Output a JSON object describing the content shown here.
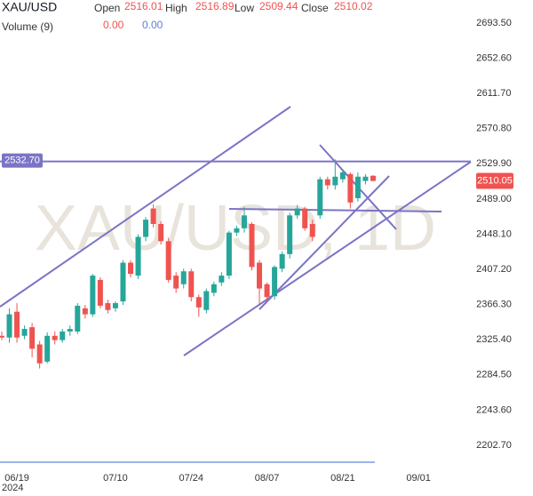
{
  "legend": {
    "symbol": "XAU/USD",
    "open_label": "Open",
    "open": "2516.01",
    "high_label": "High",
    "high": "2516.89",
    "low_label": "Low",
    "low": "2509.44",
    "close_label": "Close",
    "close": "2510.02",
    "volume_label": "Volume (9)",
    "volume_1": "0.00",
    "volume_2": "0.00"
  },
  "chart_data": {
    "type": "candlestick",
    "watermark": "XAU/USD, 1D",
    "year_label": "2024",
    "categories": [
      null,
      null,
      "06/19",
      null,
      null,
      null,
      null,
      null,
      null,
      null,
      null,
      null,
      null,
      null,
      null,
      "07/10",
      null,
      null,
      null,
      null,
      null,
      null,
      null,
      null,
      null,
      "07/24",
      null,
      null,
      null,
      null,
      null,
      null,
      null,
      null,
      null,
      "08/07",
      null,
      null,
      null,
      null,
      null,
      null,
      null,
      null,
      null,
      "08/21",
      null,
      null,
      null,
      null,
      null,
      null,
      null,
      null,
      null,
      "09/01"
    ],
    "open": [
      2330,
      2328,
      2358,
      2330,
      2340,
      2320,
      2300,
      2330,
      2325,
      2335,
      2335,
      2362,
      2355,
      2395,
      2368,
      2362,
      2370,
      2415,
      2400,
      2445,
      2478,
      2460,
      2440,
      2400,
      2390,
      2405,
      2375,
      2360,
      2380,
      2392,
      2400,
      2450,
      2455,
      2460,
      2415,
      2390,
      2376,
      2408,
      2425,
      2470,
      2478,
      2460,
      2470,
      2512,
      2505,
      2512,
      2518,
      2490,
      2510,
      2516.01,
      null,
      null,
      null,
      null,
      null,
      null
    ],
    "high": [
      2335,
      2362,
      2368,
      2342,
      2345,
      2324,
      2334,
      2335,
      2338,
      2342,
      2368,
      2366,
      2402,
      2398,
      2372,
      2370,
      2418,
      2418,
      2448,
      2468,
      2483,
      2463,
      2444,
      2404,
      2408,
      2408,
      2378,
      2385,
      2393,
      2404,
      2452,
      2458,
      2480,
      2462,
      2418,
      2392,
      2412,
      2428,
      2473,
      2482,
      2480,
      2465,
      2515,
      2515,
      2535,
      2522,
      2520,
      2520,
      2518,
      2516.89,
      null,
      null,
      null,
      null,
      null,
      null
    ],
    "low": [
      2325,
      2322,
      2322,
      2326,
      2305,
      2292,
      2298,
      2320,
      2322,
      2330,
      2332,
      2350,
      2352,
      2362,
      2356,
      2358,
      2366,
      2398,
      2396,
      2440,
      2456,
      2436,
      2392,
      2380,
      2385,
      2370,
      2352,
      2356,
      2376,
      2388,
      2396,
      2446,
      2450,
      2406,
      2365,
      2370,
      2372,
      2404,
      2420,
      2466,
      2452,
      2440,
      2466,
      2500,
      2500,
      2508,
      2478,
      2486,
      2506,
      2509.44,
      null,
      null,
      null,
      null,
      null,
      null
    ],
    "close": [
      2328,
      2355,
      2328,
      2338,
      2315,
      2298,
      2330,
      2325,
      2335,
      2338,
      2365,
      2355,
      2400,
      2365,
      2360,
      2368,
      2415,
      2402,
      2445,
      2465,
      2460,
      2440,
      2395,
      2385,
      2405,
      2375,
      2363,
      2382,
      2390,
      2400,
      2450,
      2455,
      2470,
      2410,
      2385,
      2375,
      2410,
      2425,
      2470,
      2478,
      2455,
      2445,
      2512,
      2505,
      2515,
      2520,
      2485,
      2515,
      2515,
      2510.02,
      null,
      null,
      null,
      null,
      null,
      null
    ],
    "up_color": "#26a69a",
    "down_color": "#ef5350",
    "ylim": [
      2183.07,
      2720.37
    ],
    "yticks": [
      {
        "value": 2693.5,
        "label": "2693.50"
      },
      {
        "value": 2652.6,
        "label": "2652.60"
      },
      {
        "value": 2611.7,
        "label": "2611.70"
      },
      {
        "value": 2570.8,
        "label": "2570.80"
      },
      {
        "value": 2529.9,
        "label": "2529.90"
      },
      {
        "value": 2489,
        "label": "2489.00"
      },
      {
        "value": 2448.1,
        "label": "2448.10"
      },
      {
        "value": 2407.2,
        "label": "2407.20"
      },
      {
        "value": 2366.3,
        "label": "2366.30"
      },
      {
        "value": 2325.4,
        "label": "2325.40"
      },
      {
        "value": 2284.5,
        "label": "2284.50"
      },
      {
        "value": 2243.6,
        "label": "2243.60"
      },
      {
        "value": 2202.7,
        "label": "2202.70"
      }
    ],
    "horizontal_line": {
      "value": 2532.7,
      "label": "2532.70"
    },
    "last_price": 2510.05
  }
}
